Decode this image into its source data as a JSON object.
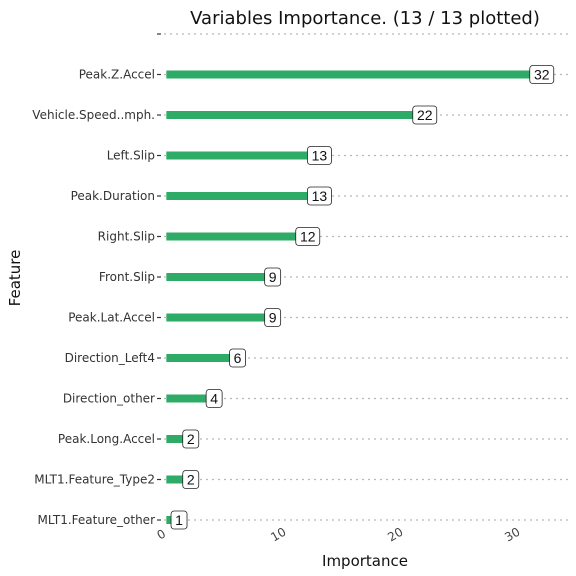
{
  "chart_data": {
    "type": "bar",
    "orientation": "horizontal",
    "title": "Variables Importance. (13 / 13 plotted)",
    "xlabel": "Importance",
    "ylabel": "Feature",
    "categories": [
      "",
      "Peak.Z.Accel",
      "Vehicle.Speed..mph.",
      "Left.Slip",
      "Peak.Duration",
      "Right.Slip",
      "Front.Slip",
      "Peak.Lat.Accel",
      "Direction_Left4",
      "Direction_other",
      "Peak.Long.Accel",
      "MLT1.Feature_Type2",
      "MLT1.Feature_other"
    ],
    "values": [
      0,
      32,
      22,
      13,
      13,
      12,
      9,
      9,
      6,
      4,
      2,
      2,
      1
    ],
    "labels": [
      "",
      "32",
      "22",
      "13",
      "13",
      "12",
      "9",
      "9",
      "6",
      "4",
      "2",
      "2",
      "1"
    ],
    "xticks": [
      0,
      10,
      20,
      30
    ],
    "xlim": [
      -0.2,
      34.5
    ],
    "bar_color": "#2eab66",
    "grid": "dotted horizontal"
  }
}
